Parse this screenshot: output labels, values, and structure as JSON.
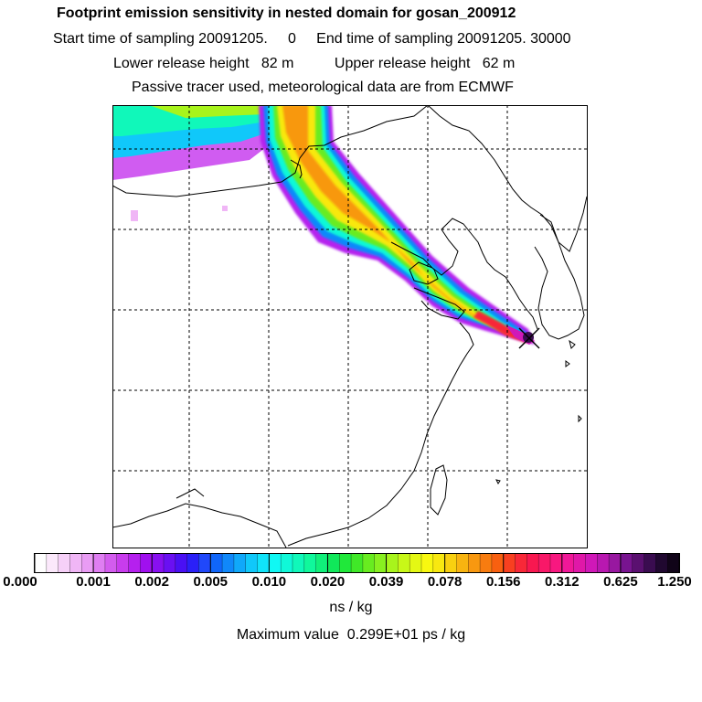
{
  "header": {
    "title": "Footprint emission sensitivity in nested domain for gosan_200912",
    "sampling_line": "Start time of sampling 20091205.     0     End time of sampling 20091205. 30000",
    "release_line": "Lower release height   82 m          Upper release height   62 m",
    "tracer_line": "Passive tracer used, meteorological data are from ECMWF"
  },
  "colorbar": {
    "tick_labels": [
      "0.000",
      "0.001",
      "0.002",
      "0.005",
      "0.010",
      "0.020",
      "0.039",
      "0.078",
      "0.156",
      "0.312",
      "0.625",
      "1.250"
    ],
    "colors": [
      "#fefefe",
      "#fbe8fb",
      "#f6d0f8",
      "#f0b6f6",
      "#e99cf4",
      "#df7ef2",
      "#d35cee",
      "#c83ced",
      "#b520ee",
      "#a010ef",
      "#8810f0",
      "#6a10f2",
      "#4a10f4",
      "#2a20f8",
      "#2048fa",
      "#1066fa",
      "#1088fa",
      "#10a8fa",
      "#10c8fa",
      "#10e4fa",
      "#10f8f4",
      "#10f8d8",
      "#10f8ba",
      "#10f89c",
      "#10f07a",
      "#10e85a",
      "#20e83a",
      "#40e828",
      "#68ec20",
      "#88f020",
      "#a8f41c",
      "#c8f818",
      "#e4f814",
      "#f8f810",
      "#f8e810",
      "#f8d010",
      "#f8b410",
      "#f89810",
      "#f87c10",
      "#f86010",
      "#f84020",
      "#f82838",
      "#f81850",
      "#f81868",
      "#f81880",
      "#f01898",
      "#e018a8",
      "#d018b8",
      "#b818b0",
      "#9818a0",
      "#781490",
      "#5a1070",
      "#3a0c50",
      "#200830",
      "#100418"
    ],
    "units": "ns / kg",
    "max_value_text": "Maximum value  0.299E+01 ps / kg"
  },
  "map": {
    "receptor": "gosan",
    "receptor_marker": "x-marker",
    "colors": {
      "frame": "#000000",
      "coast": "#000000",
      "grid": "#000000"
    }
  }
}
